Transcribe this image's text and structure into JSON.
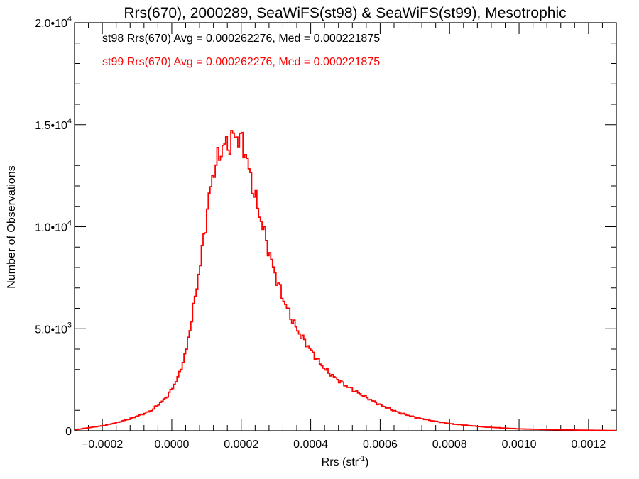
{
  "chart_data": {
    "type": "histogram",
    "title": "Rrs(670), 2000289, SeaWiFS(st98) & SeaWiFS(st99), Mesotrophic",
    "xlabel": "Rrs (str",
    "xlabel_superscript": "-1",
    "xlabel_suffix": ")",
    "ylabel": "Number of Observations",
    "xlim": [
      -0.00028,
      0.00128
    ],
    "ylim": [
      0,
      20000
    ],
    "x_ticks": [
      {
        "value": -0.0002,
        "label": "−0.0002"
      },
      {
        "value": 0.0,
        "label": "0.0000"
      },
      {
        "value": 0.0002,
        "label": "0.0002"
      },
      {
        "value": 0.0004,
        "label": "0.0004"
      },
      {
        "value": 0.0006,
        "label": "0.0006"
      },
      {
        "value": 0.0008,
        "label": "0.0008"
      },
      {
        "value": 0.001,
        "label": "0.0010"
      },
      {
        "value": 0.0012,
        "label": "0.0012"
      }
    ],
    "y_ticks": [
      {
        "value": 0,
        "label": "0",
        "exp": ""
      },
      {
        "value": 5000,
        "label": "5.0•10",
        "exp": "3"
      },
      {
        "value": 10000,
        "label": "1.0•10",
        "exp": "4"
      },
      {
        "value": 15000,
        "label": "1.5•10",
        "exp": "4"
      },
      {
        "value": 20000,
        "label": "2.0•10",
        "exp": "4"
      }
    ],
    "grid": false,
    "annotations": [
      {
        "text": "st98 Rrs(670) Avg = 0.000262276, Med = 0.000221875",
        "color": "#000000"
      },
      {
        "text": "st99 Rrs(670) Avg = 0.000262276, Med = 0.000221875",
        "color": "#ff0000"
      }
    ],
    "series": [
      {
        "color": "#ff0000",
        "x": [
          -0.00028,
          -0.00024,
          -0.0002,
          -0.00016,
          -0.00012,
          -8e-05,
          -6e-05,
          -4e-05,
          -2e-05,
          0.0,
          2e-05,
          4e-05,
          6e-05,
          8e-05,
          9e-05,
          0.0001,
          0.00011,
          0.00012,
          0.00013,
          0.00014,
          0.00015,
          0.00016,
          0.00017,
          0.00018,
          0.00019,
          0.0002,
          0.00021,
          0.00022,
          0.00023,
          0.00024,
          0.00025,
          0.00026,
          0.00027,
          0.00028,
          0.0003,
          0.00032,
          0.00034,
          0.00036,
          0.00038,
          0.0004,
          0.00042,
          0.00044,
          0.00046,
          0.00048,
          0.0005,
          0.00055,
          0.0006,
          0.00065,
          0.0007,
          0.00075,
          0.0008,
          0.0009,
          0.001,
          0.0011,
          0.0012,
          0.00128
        ],
        "values": [
          50,
          150,
          250,
          400,
          600,
          850,
          1000,
          1300,
          1600,
          2100,
          2800,
          4000,
          6000,
          8200,
          9500,
          10800,
          12000,
          12800,
          13300,
          13700,
          14100,
          13900,
          14300,
          14500,
          14300,
          14200,
          13600,
          12800,
          12000,
          11300,
          10600,
          10000,
          9300,
          8600,
          7400,
          6400,
          5600,
          4900,
          4400,
          3900,
          3400,
          3000,
          2700,
          2450,
          2200,
          1700,
          1250,
          900,
          650,
          480,
          340,
          180,
          90,
          50,
          25,
          10
        ]
      }
    ]
  }
}
